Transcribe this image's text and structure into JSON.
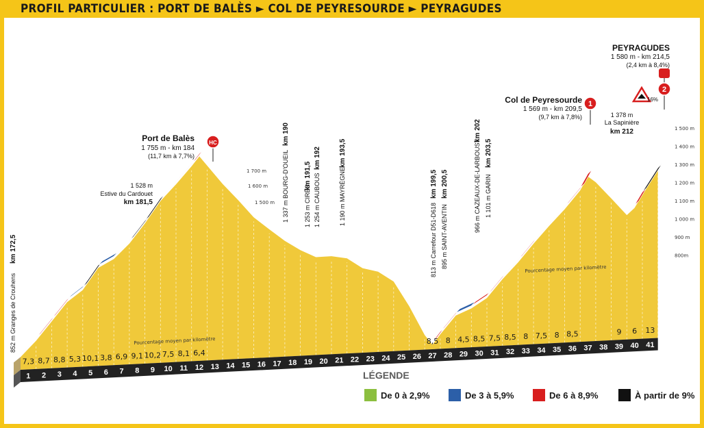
{
  "header": {
    "title": "PROFIL PARTICULIER : PORT DE BALÈS  ► COL DE PEYRESOURDE ► PEYRAGUDES"
  },
  "colors": {
    "frame": "#f5c518",
    "terrain": "#f0c93a",
    "terrain_shadow": "#d8ad28",
    "base": "#222222",
    "green": "#8cbf3f",
    "blue": "#2c5fa8",
    "red": "#d81e1e",
    "black": "#111111"
  },
  "chart_data": {
    "type": "area",
    "title": "PROFIL PARTICULIER : PORT DE BALÈS ► COL DE PEYRESOURDE ► PEYRAGUDES",
    "xlabel": "",
    "ylabel": "",
    "km_markers": [
      "1",
      "2",
      "3",
      "4",
      "5",
      "6",
      "7",
      "8",
      "9",
      "10",
      "11",
      "12",
      "13",
      "14",
      "15",
      "16",
      "17",
      "18",
      "19",
      "20",
      "21",
      "22",
      "23",
      "24",
      "25",
      "26",
      "27",
      "28",
      "29",
      "30",
      "31",
      "32",
      "33",
      "34",
      "35",
      "36",
      "37",
      "38",
      "39",
      "40",
      "41"
    ],
    "gradients_per_km": [
      "7,3",
      "8,7",
      "8,8",
      "5,3",
      "10,1",
      "3,8",
      "6,9",
      "9,1",
      "10,2",
      "7,5",
      "8,1",
      "6,4",
      "",
      "",
      "",
      "",
      "",
      "",
      "",
      "",
      "",
      "",
      "",
      "",
      "",
      "",
      "8,5",
      "8",
      "4,5",
      "8,5",
      "7,5",
      "8,5",
      "8",
      "7,5",
      "8",
      "8,5",
      "",
      "",
      "9",
      "6",
      "13"
    ],
    "average_label": "Pourcentage moyen par kilomètre",
    "profile": {
      "km": [
        0,
        1,
        2,
        3,
        4,
        5,
        6,
        7,
        8,
        9,
        10,
        11,
        11.5,
        12,
        13,
        14,
        15,
        16,
        17,
        18,
        19,
        20,
        21,
        22,
        23,
        24,
        25,
        26,
        26.5,
        27,
        28,
        29,
        30,
        31,
        32,
        33,
        34,
        35,
        36,
        36.5,
        37,
        38,
        39,
        39.5,
        40,
        41
      ],
      "altitude_m": [
        852,
        925,
        1012,
        1100,
        1153,
        1254,
        1292,
        1361,
        1452,
        1554,
        1629,
        1710,
        1755,
        1710,
        1620,
        1540,
        1455,
        1395,
        1337,
        1290,
        1253,
        1254,
        1240,
        1190,
        1170,
        1120,
        1000,
        860,
        813,
        860,
        945,
        975,
        1020,
        1105,
        1180,
        1265,
        1345,
        1420,
        1505,
        1569,
        1540,
        1460,
        1378,
        1410,
        1470,
        1580
      ]
    },
    "summits": [
      {
        "name": "Port de Balès",
        "detail": "1 755 m - km 184",
        "grade": "(11,7 km à 7,7%)",
        "category": "HC"
      },
      {
        "name": "Col de Peyresourde",
        "detail": "1 569 m - km 209,5",
        "grade": "(9,7 km à 7,8%)",
        "category": "1"
      },
      {
        "name": "PEYRAGUDES",
        "detail": "1 580 m - km 214,5",
        "grade": "(2,4 km à 8,4%)",
        "category": "2"
      }
    ],
    "waypoints": [
      {
        "alt": "852 m",
        "name": "Granges de Crouhens",
        "km": "km 172,5"
      },
      {
        "alt": "1 528 m",
        "name": "Estive du Cardouet",
        "km": "km 181,5"
      },
      {
        "alt": "1 337 m",
        "name": "BOURG-D'OUEIL",
        "km": "km 190"
      },
      {
        "alt": "1 253 m",
        "name": "CIRÈS",
        "km": "km 191,5"
      },
      {
        "alt": "1 254 m",
        "name": "CAUBOUS",
        "km": "km 192"
      },
      {
        "alt": "1 190 m",
        "name": "MAYRÈGNE",
        "km": "km 193,5"
      },
      {
        "alt": "813 m",
        "name": "Carrefour D51-D618",
        "km": "km 199,5"
      },
      {
        "alt": "895 m",
        "name": "SAINT-AVENTIN",
        "km": "km 200,5"
      },
      {
        "alt": "966 m",
        "name": "CAZEAUX-DE-LARBOUST",
        "km": "km 202"
      },
      {
        "alt": "1 101 m",
        "name": "GARIN",
        "km": "km 203,5"
      },
      {
        "alt": "1 378 m",
        "name": "La Sapinière",
        "km": "km 212"
      }
    ],
    "left_alt_ticks": [
      "1 700 m",
      "1 600 m",
      "1 500 m"
    ],
    "right_alt_ticks": [
      "1 500 m",
      "1 400 m",
      "1 300 m",
      "1 200 m",
      "1 100 m",
      "1 000 m",
      "900 m",
      "800m"
    ],
    "warning_sign": "16%"
  },
  "legend": {
    "title": "LÉGENDE",
    "items": [
      {
        "label": "De 0 à 2,9%",
        "color": "#8cbf3f"
      },
      {
        "label": "De 3 à 5,9%",
        "color": "#2c5fa8"
      },
      {
        "label": "De 6 à 8,9%",
        "color": "#d81e1e"
      },
      {
        "label": "À partir de 9%",
        "color": "#111111"
      }
    ]
  }
}
